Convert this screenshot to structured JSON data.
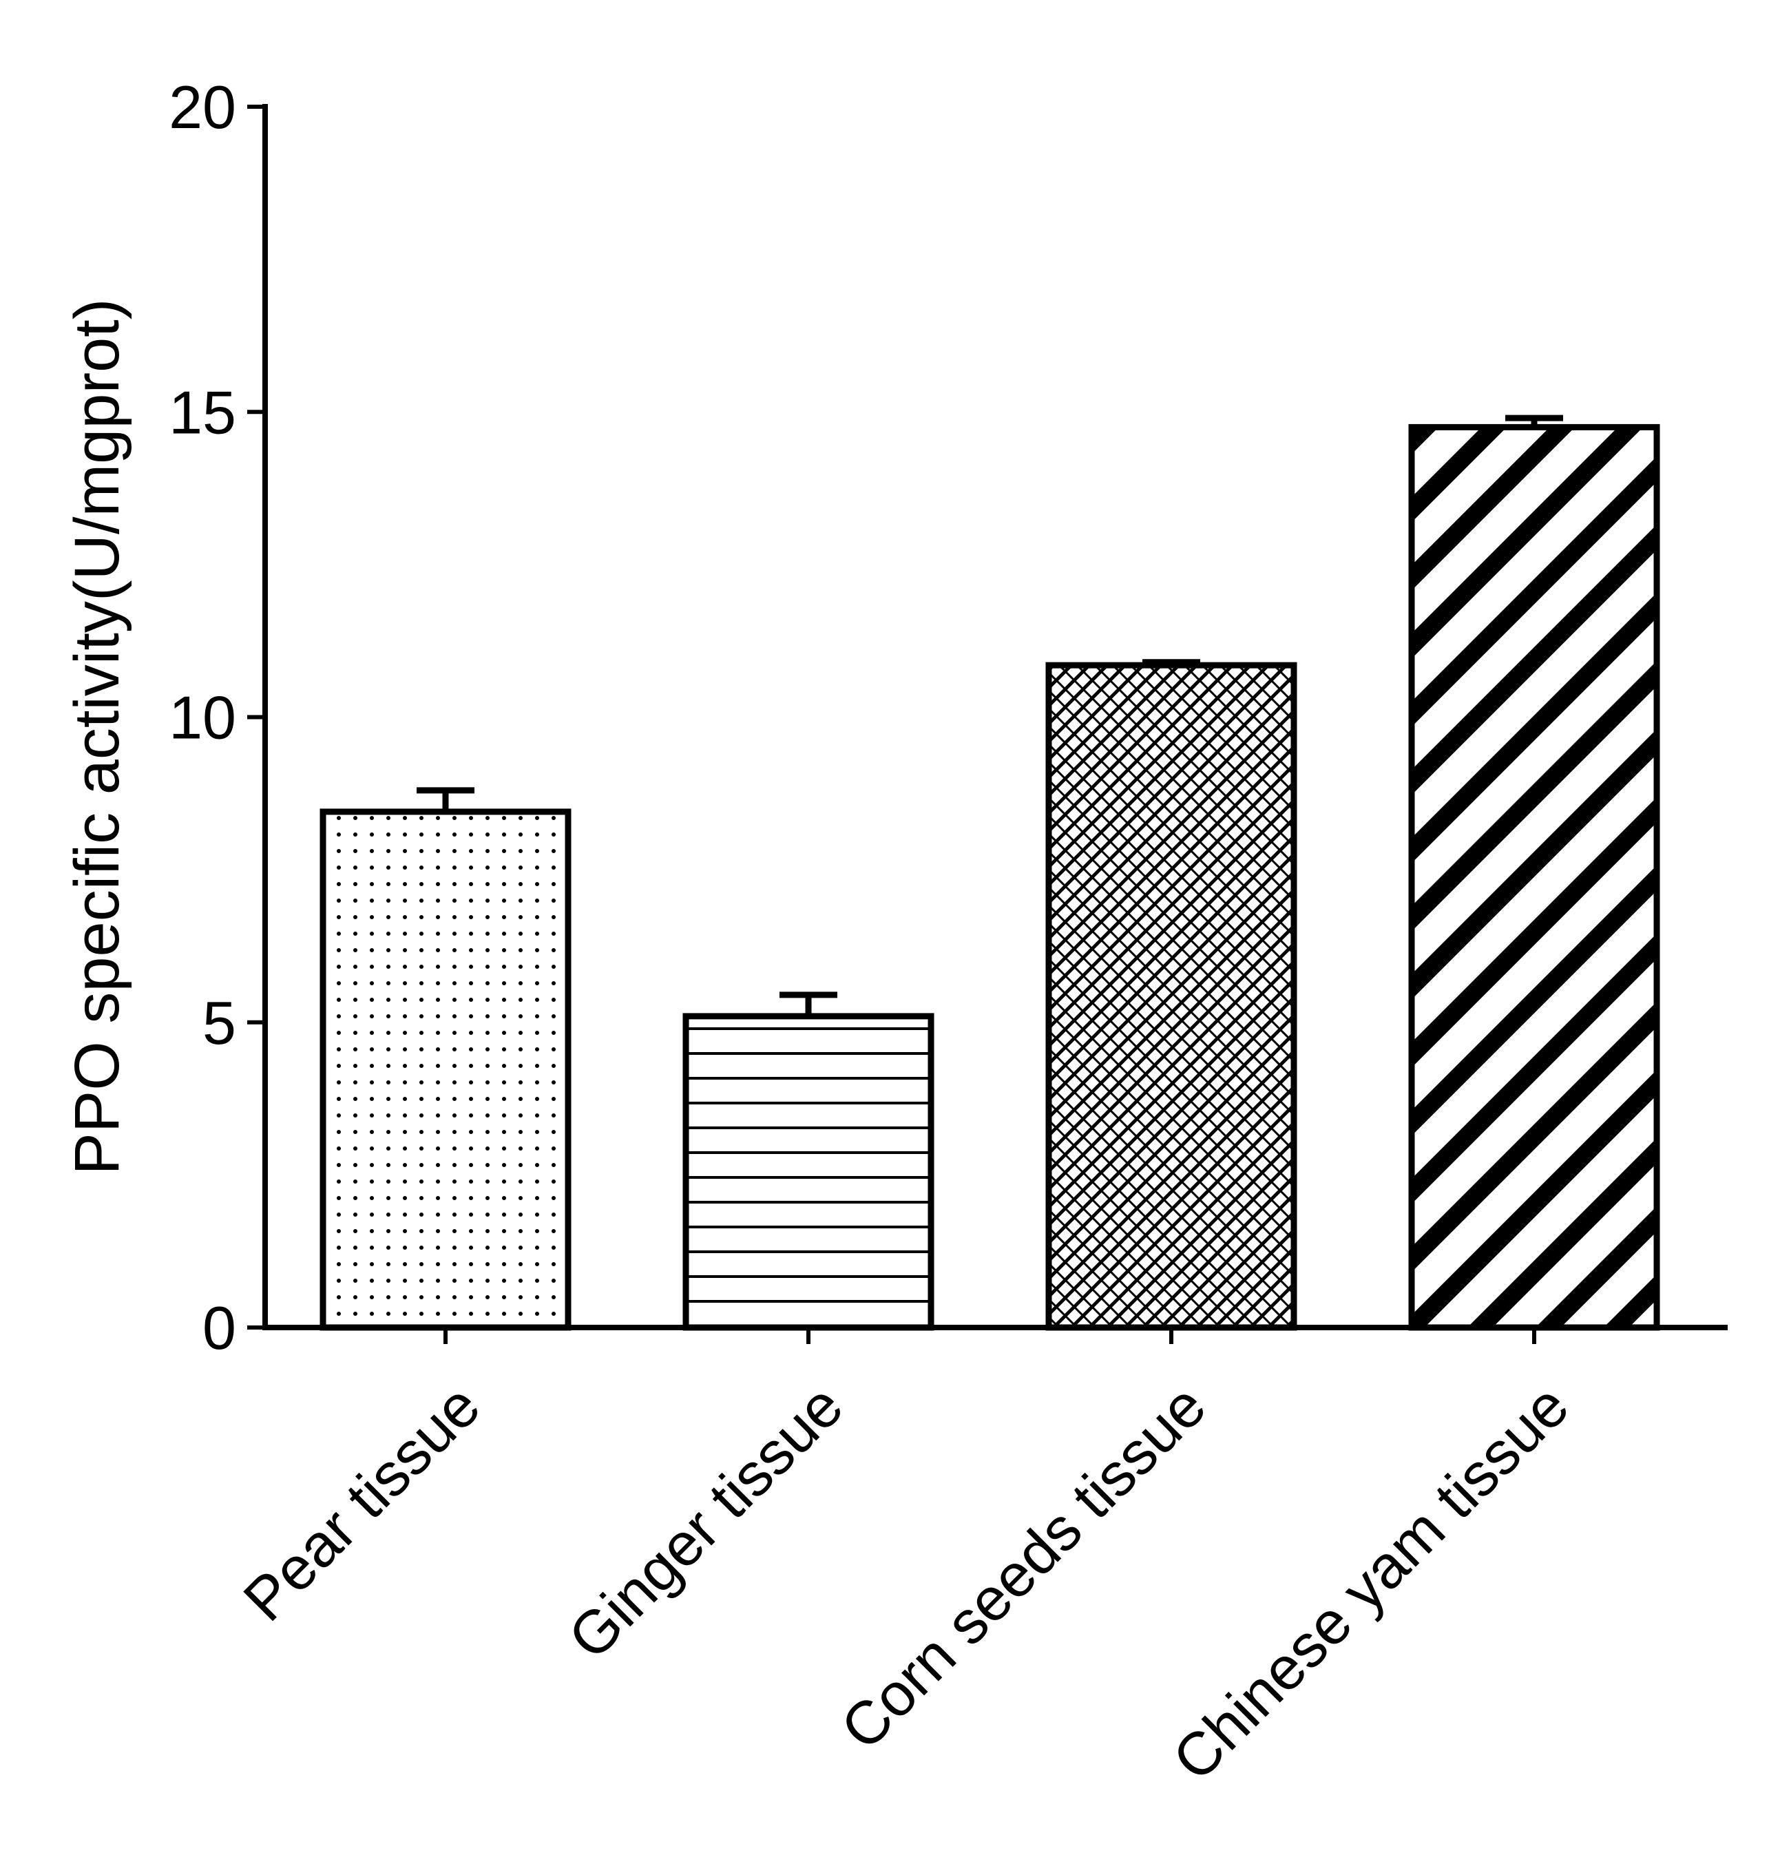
{
  "chart_data": {
    "type": "bar",
    "title": "",
    "xlabel": "",
    "ylabel": "PPO specific activity(U/mgprot)",
    "ylim": [
      0,
      20
    ],
    "yticks": [
      0,
      5,
      10,
      15,
      20
    ],
    "categories": [
      "Pear tissue",
      "Ginger tissue",
      "Corn seeds tissue",
      "Chinese yam tissue"
    ],
    "values": [
      8.45,
      5.1,
      10.85,
      14.75
    ],
    "errors": [
      0.35,
      0.35,
      0.05,
      0.15
    ],
    "patterns": [
      "dots",
      "horizontal-lines",
      "crosshatch",
      "diagonal-stripes"
    ],
    "legend": null,
    "grid": false
  }
}
